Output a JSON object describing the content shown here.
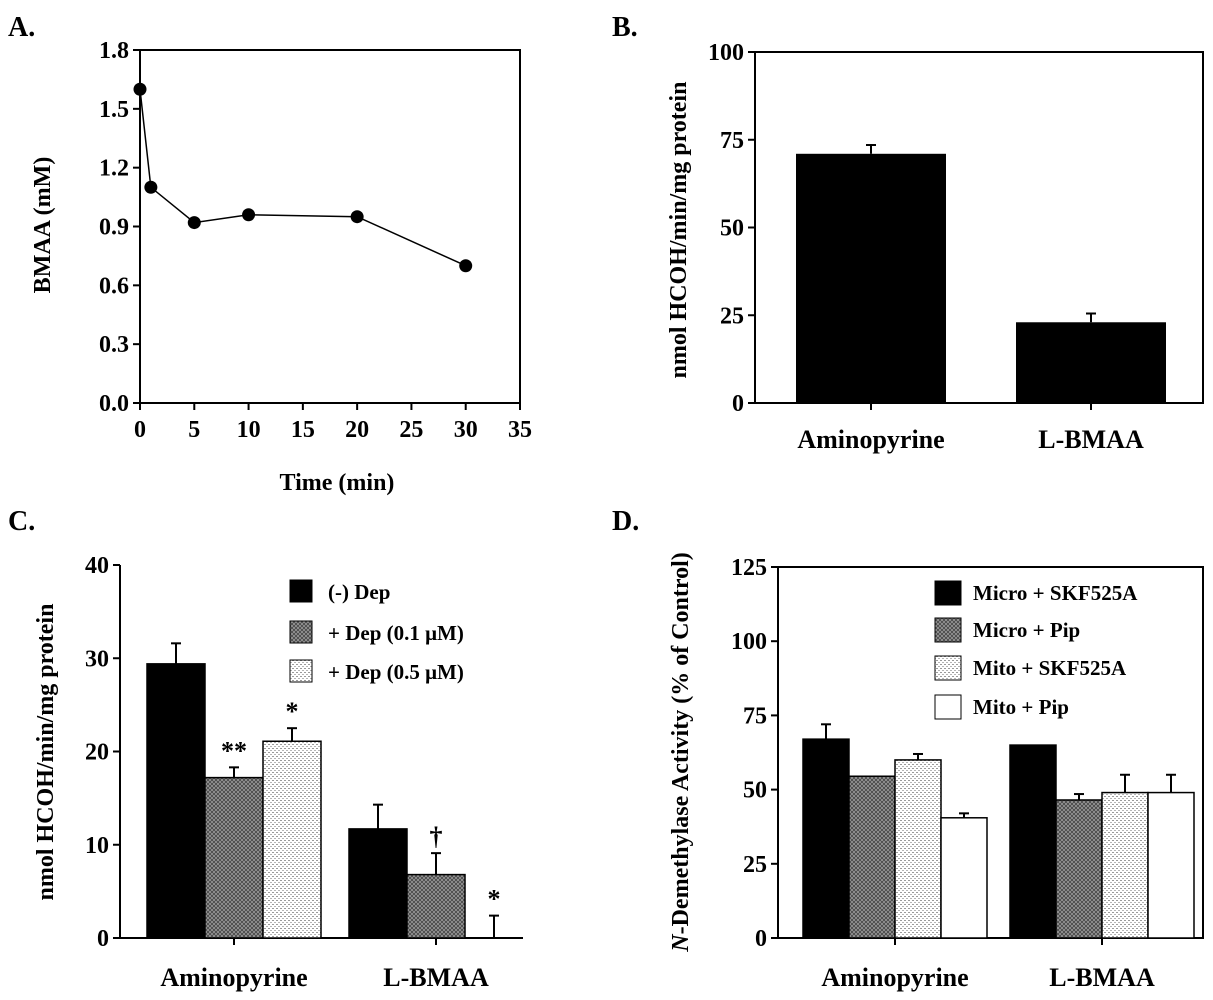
{
  "chart_data": [
    {
      "panel": "A.",
      "type": "line",
      "xlabel": "Time (min)",
      "ylabel": "BMAA (mM)",
      "xlim": [
        0,
        35
      ],
      "ylim": [
        0,
        1.8
      ],
      "xticks": [
        "0",
        "5",
        "10",
        "15",
        "20",
        "25",
        "30",
        "35"
      ],
      "yticks": [
        "0.0",
        "0.3",
        "0.6",
        "0.9",
        "1.2",
        "1.5",
        "1.8"
      ],
      "x": [
        0,
        1,
        5,
        10,
        20,
        30
      ],
      "y": [
        1.6,
        1.1,
        0.92,
        0.96,
        0.95,
        0.7
      ]
    },
    {
      "panel": "B.",
      "type": "bar",
      "ylabel": "nmol HCOH/min/mg protein",
      "ylim": [
        0,
        100
      ],
      "yticks": [
        "0",
        "25",
        "50",
        "75",
        "100"
      ],
      "categories": [
        "Aminopyrine",
        "L-BMAA"
      ],
      "values": [
        71,
        23
      ],
      "errors": [
        2.5,
        2.5
      ]
    },
    {
      "panel": "C.",
      "type": "bar",
      "ylabel": "nmol HCOH/min/mg protein",
      "ylim": [
        0,
        40
      ],
      "yticks": [
        "0",
        "10",
        "20",
        "30",
        "40"
      ],
      "categories": [
        "Aminopyrine",
        "L-BMAA"
      ],
      "legend_position": "top-right",
      "series": [
        {
          "name": "(-) Dep",
          "values": [
            29.4,
            11.7
          ],
          "errors": [
            2.2,
            2.6
          ],
          "marks": [
            "",
            ""
          ]
        },
        {
          "name": "+ Dep (0.1 μM)",
          "values": [
            17.2,
            6.8
          ],
          "errors": [
            1.1,
            2.3
          ],
          "marks": [
            "**",
            "†"
          ]
        },
        {
          "name": "+ Dep (0.5 μM)",
          "values": [
            21.1,
            0
          ],
          "errors": [
            1.4,
            2.4
          ],
          "marks": [
            "*",
            "*"
          ]
        }
      ]
    },
    {
      "panel": "D.",
      "type": "bar",
      "ylabel": "N-Demethylase Activity (% of Control)",
      "ylabel_italic_prefix": "N",
      "ylabel_rest": "-Demethylase Activity (% of Control)",
      "ylim": [
        0,
        125
      ],
      "yticks": [
        "0",
        "25",
        "50",
        "75",
        "100",
        "125"
      ],
      "categories": [
        "Aminopyrine",
        "L-BMAA"
      ],
      "legend_position": "top-right",
      "series": [
        {
          "name": "Micro + SKF525A",
          "values": [
            67,
            65
          ],
          "errors": [
            5,
            0
          ]
        },
        {
          "name": "Micro + Pip",
          "values": [
            54.5,
            46.5
          ],
          "errors": [
            0,
            2
          ]
        },
        {
          "name": "Mito + SKF525A",
          "values": [
            60,
            49
          ],
          "errors": [
            2,
            6
          ]
        },
        {
          "name": "Mito + Pip",
          "values": [
            40.5,
            49
          ],
          "errors": [
            1.5,
            6
          ]
        }
      ]
    }
  ]
}
